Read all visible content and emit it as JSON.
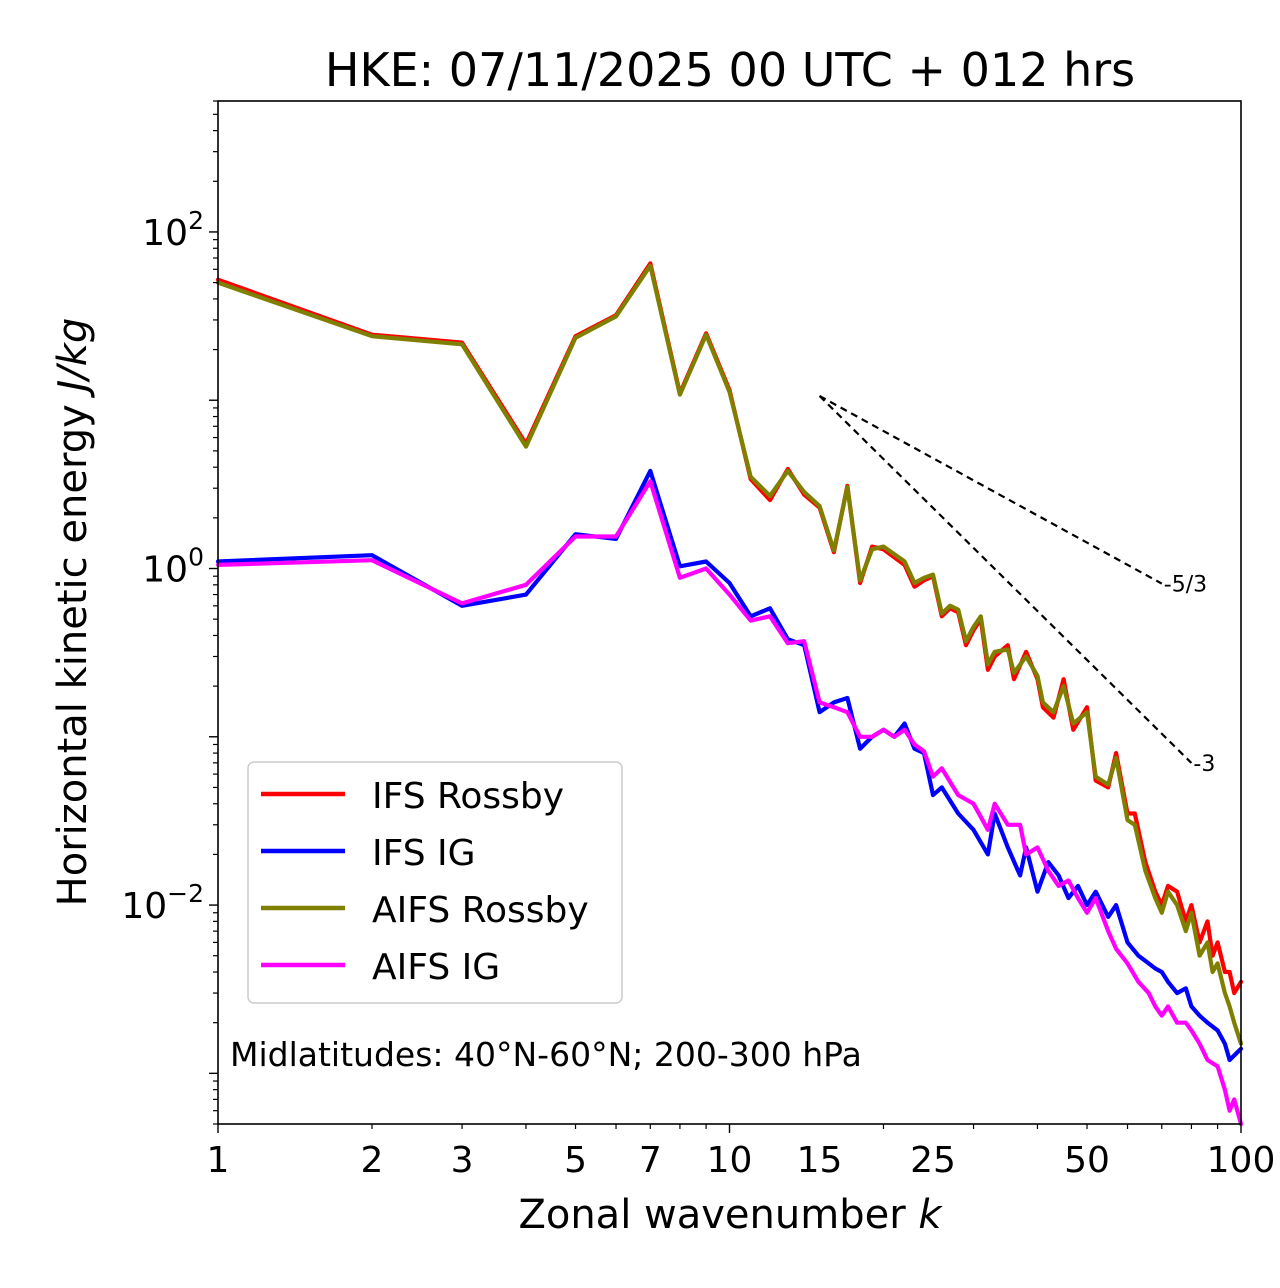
{
  "chart_data": {
    "type": "line",
    "title": "HKE: 07/11/2025 00 UTC + 012 hrs",
    "xlabel_text": "Zonal wavenumber ",
    "xlabel_var": "k",
    "ylabel_text": "Horizontal kinetic energy ",
    "ylabel_unit": "J/kg",
    "x_scale": "log",
    "y_scale": "log",
    "xlim": [
      1,
      100
    ],
    "ylim": [
      0.0005,
      600
    ],
    "x_ticks": [
      1,
      2,
      3,
      5,
      7,
      10,
      15,
      25,
      50,
      100
    ],
    "x_tick_labels": [
      "1",
      "2",
      "3",
      "5",
      "7",
      "10",
      "15",
      "25",
      "50",
      "100"
    ],
    "y_ticks": [
      {
        "value": 100,
        "base": "10",
        "exp": "2"
      },
      {
        "value": 1,
        "base": "10",
        "exp": "0"
      },
      {
        "value": 0.01,
        "base": "10",
        "exp": "−2"
      }
    ],
    "annotation": "Midlatitudes: 40°N-60°N; 200-300 hPa",
    "reference_slopes": [
      {
        "label": "-5/3",
        "slope": -1.6667,
        "x_start": 15,
        "x_end": 70,
        "y_start": 10.6
      },
      {
        "label": "-3",
        "slope": -3,
        "x_start": 15,
        "x_end": 80,
        "y_start": 10.6
      }
    ],
    "legend_position": "lower-left",
    "series": [
      {
        "name": "IFS Rossby",
        "color": "#ff0000",
        "points": [
          [
            1,
            52
          ],
          [
            2,
            24.5
          ],
          [
            3,
            22
          ],
          [
            4,
            5.5
          ],
          [
            5,
            24
          ],
          [
            6,
            32
          ],
          [
            7,
            65
          ],
          [
            8,
            11
          ],
          [
            9,
            25
          ],
          [
            10,
            11.5
          ],
          [
            11,
            3.4
          ],
          [
            12,
            2.55
          ],
          [
            13,
            3.9
          ],
          [
            14,
            2.75
          ],
          [
            15,
            2.3
          ],
          [
            16,
            1.25
          ],
          [
            17,
            3.1
          ],
          [
            18,
            0.82
          ],
          [
            19,
            1.35
          ],
          [
            20,
            1.3
          ],
          [
            22,
            1.05
          ],
          [
            23,
            0.78
          ],
          [
            24,
            0.85
          ],
          [
            25,
            0.9
          ],
          [
            26,
            0.52
          ],
          [
            27,
            0.58
          ],
          [
            28,
            0.55
          ],
          [
            29,
            0.35
          ],
          [
            30,
            0.43
          ],
          [
            31,
            0.5
          ],
          [
            32,
            0.25
          ],
          [
            33,
            0.3
          ],
          [
            35,
            0.35
          ],
          [
            36,
            0.22
          ],
          [
            38,
            0.32
          ],
          [
            40,
            0.22
          ],
          [
            41,
            0.15
          ],
          [
            43,
            0.13
          ],
          [
            45,
            0.22
          ],
          [
            47,
            0.11
          ],
          [
            50,
            0.15
          ],
          [
            52,
            0.055
          ],
          [
            55,
            0.05
          ],
          [
            57,
            0.08
          ],
          [
            60,
            0.035
          ],
          [
            62,
            0.035
          ],
          [
            65,
            0.018
          ],
          [
            68,
            0.012
          ],
          [
            70,
            0.01
          ],
          [
            72,
            0.013
          ],
          [
            75,
            0.012
          ],
          [
            78,
            0.008
          ],
          [
            80,
            0.01
          ],
          [
            83,
            0.006
          ],
          [
            86,
            0.008
          ],
          [
            88,
            0.005
          ],
          [
            90,
            0.006
          ],
          [
            93,
            0.004
          ],
          [
            95,
            0.004
          ],
          [
            97,
            0.003
          ],
          [
            100,
            0.0035
          ]
        ]
      },
      {
        "name": "IFS IG",
        "color": "#0000ff",
        "points": [
          [
            1,
            1.1
          ],
          [
            2,
            1.2
          ],
          [
            3,
            0.6
          ],
          [
            4,
            0.7
          ],
          [
            5,
            1.6
          ],
          [
            6,
            1.5
          ],
          [
            7,
            3.8
          ],
          [
            8,
            1.03
          ],
          [
            9,
            1.1
          ],
          [
            10,
            0.82
          ],
          [
            11,
            0.52
          ],
          [
            12,
            0.58
          ],
          [
            13,
            0.38
          ],
          [
            14,
            0.35
          ],
          [
            15,
            0.14
          ],
          [
            16,
            0.16
          ],
          [
            17,
            0.17
          ],
          [
            18,
            0.085
          ],
          [
            19,
            0.1
          ],
          [
            20,
            0.11
          ],
          [
            21,
            0.1
          ],
          [
            22,
            0.12
          ],
          [
            23,
            0.085
          ],
          [
            24,
            0.08
          ],
          [
            25,
            0.045
          ],
          [
            26,
            0.05
          ],
          [
            28,
            0.035
          ],
          [
            30,
            0.028
          ],
          [
            32,
            0.02
          ],
          [
            33,
            0.035
          ],
          [
            35,
            0.022
          ],
          [
            37,
            0.015
          ],
          [
            38,
            0.022
          ],
          [
            40,
            0.012
          ],
          [
            42,
            0.018
          ],
          [
            44,
            0.015
          ],
          [
            46,
            0.011
          ],
          [
            48,
            0.013
          ],
          [
            50,
            0.01
          ],
          [
            52,
            0.012
          ],
          [
            55,
            0.0085
          ],
          [
            57,
            0.01
          ],
          [
            60,
            0.006
          ],
          [
            63,
            0.005
          ],
          [
            66,
            0.0045
          ],
          [
            68,
            0.0042
          ],
          [
            70,
            0.004
          ],
          [
            72,
            0.0035
          ],
          [
            75,
            0.003
          ],
          [
            78,
            0.0032
          ],
          [
            80,
            0.0025
          ],
          [
            83,
            0.0022
          ],
          [
            86,
            0.002
          ],
          [
            90,
            0.0018
          ],
          [
            93,
            0.0015
          ],
          [
            95,
            0.0012
          ],
          [
            100,
            0.0014
          ]
        ]
      },
      {
        "name": "AIFS Rossby",
        "color": "#808000",
        "points": [
          [
            1,
            50
          ],
          [
            2,
            24
          ],
          [
            3,
            21.5
          ],
          [
            4,
            5.3
          ],
          [
            5,
            23.5
          ],
          [
            6,
            31.5
          ],
          [
            7,
            63
          ],
          [
            8,
            10.8
          ],
          [
            9,
            24.5
          ],
          [
            10,
            11.2
          ],
          [
            11,
            3.5
          ],
          [
            12,
            2.7
          ],
          [
            13,
            3.8
          ],
          [
            14,
            2.85
          ],
          [
            15,
            2.35
          ],
          [
            16,
            1.28
          ],
          [
            17,
            3.05
          ],
          [
            18,
            0.85
          ],
          [
            19,
            1.3
          ],
          [
            20,
            1.35
          ],
          [
            22,
            1.1
          ],
          [
            23,
            0.82
          ],
          [
            24,
            0.88
          ],
          [
            25,
            0.92
          ],
          [
            26,
            0.54
          ],
          [
            27,
            0.6
          ],
          [
            28,
            0.57
          ],
          [
            29,
            0.37
          ],
          [
            30,
            0.45
          ],
          [
            31,
            0.52
          ],
          [
            32,
            0.27
          ],
          [
            33,
            0.32
          ],
          [
            35,
            0.33
          ],
          [
            36,
            0.24
          ],
          [
            38,
            0.3
          ],
          [
            40,
            0.23
          ],
          [
            41,
            0.16
          ],
          [
            43,
            0.14
          ],
          [
            45,
            0.2
          ],
          [
            47,
            0.12
          ],
          [
            50,
            0.14
          ],
          [
            52,
            0.058
          ],
          [
            55,
            0.052
          ],
          [
            57,
            0.075
          ],
          [
            60,
            0.032
          ],
          [
            62,
            0.03
          ],
          [
            65,
            0.016
          ],
          [
            68,
            0.011
          ],
          [
            70,
            0.009
          ],
          [
            72,
            0.012
          ],
          [
            75,
            0.01
          ],
          [
            78,
            0.007
          ],
          [
            80,
            0.009
          ],
          [
            83,
            0.005
          ],
          [
            86,
            0.006
          ],
          [
            88,
            0.004
          ],
          [
            90,
            0.0045
          ],
          [
            93,
            0.003
          ],
          [
            95,
            0.0025
          ],
          [
            97,
            0.002
          ],
          [
            100,
            0.0015
          ]
        ]
      },
      {
        "name": "AIFS IG",
        "color": "#ff00ff",
        "points": [
          [
            1,
            1.05
          ],
          [
            2,
            1.12
          ],
          [
            3,
            0.62
          ],
          [
            4,
            0.8
          ],
          [
            5,
            1.55
          ],
          [
            6,
            1.55
          ],
          [
            7,
            3.3
          ],
          [
            8,
            0.88
          ],
          [
            9,
            1.0
          ],
          [
            10,
            0.7
          ],
          [
            11,
            0.49
          ],
          [
            12,
            0.52
          ],
          [
            13,
            0.36
          ],
          [
            14,
            0.37
          ],
          [
            15,
            0.16
          ],
          [
            16,
            0.15
          ],
          [
            17,
            0.14
          ],
          [
            18,
            0.1
          ],
          [
            19,
            0.1
          ],
          [
            20,
            0.11
          ],
          [
            21,
            0.1
          ],
          [
            22,
            0.11
          ],
          [
            23,
            0.09
          ],
          [
            24,
            0.082
          ],
          [
            25,
            0.058
          ],
          [
            26,
            0.065
          ],
          [
            28,
            0.045
          ],
          [
            30,
            0.04
          ],
          [
            32,
            0.028
          ],
          [
            33,
            0.04
          ],
          [
            35,
            0.03
          ],
          [
            37,
            0.03
          ],
          [
            38,
            0.02
          ],
          [
            40,
            0.022
          ],
          [
            42,
            0.016
          ],
          [
            44,
            0.013
          ],
          [
            46,
            0.014
          ],
          [
            48,
            0.011
          ],
          [
            50,
            0.009
          ],
          [
            52,
            0.011
          ],
          [
            55,
            0.007
          ],
          [
            57,
            0.0055
          ],
          [
            60,
            0.0045
          ],
          [
            63,
            0.0035
          ],
          [
            66,
            0.003
          ],
          [
            68,
            0.0025
          ],
          [
            70,
            0.0022
          ],
          [
            72,
            0.0025
          ],
          [
            75,
            0.002
          ],
          [
            78,
            0.002
          ],
          [
            80,
            0.0018
          ],
          [
            83,
            0.0015
          ],
          [
            86,
            0.0012
          ],
          [
            90,
            0.0011
          ],
          [
            93,
            0.0008
          ],
          [
            95,
            0.0006
          ],
          [
            97,
            0.0007
          ],
          [
            100,
            0.0005
          ]
        ]
      }
    ]
  }
}
